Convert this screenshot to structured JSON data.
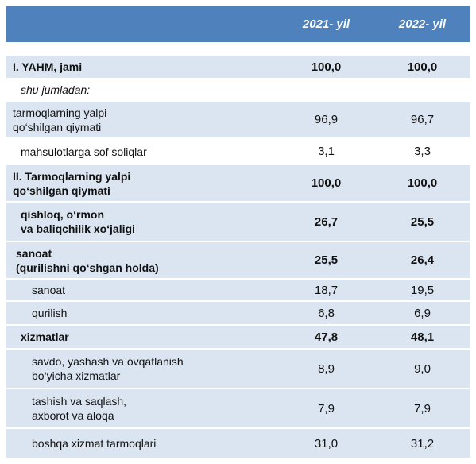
{
  "table": {
    "header": [
      "2021- yil",
      "2022- yil"
    ],
    "rows": [
      {
        "label": [
          "I. YAHM, jami"
        ],
        "values": [
          "100,0",
          "100,0"
        ]
      },
      {
        "label": [
          "shu jumladan:"
        ],
        "values": []
      },
      {
        "label": [
          "tarmoqlarning yalpi",
          "qo‘shilgan qiymati"
        ],
        "values": [
          "96,9",
          "96,7"
        ]
      },
      {
        "label": [
          "mahsulotlarga sof soliqlar"
        ],
        "values": [
          "3,1",
          "3,3"
        ]
      },
      {
        "label": [
          "II.  Tarmoqlarning yalpi",
          "qo‘shilgan qiymati"
        ],
        "values": [
          "100,0",
          "100,0"
        ]
      },
      {
        "label": [
          "qishloq, o‘rmon",
          "va baliqchilik xo‘jaligi"
        ],
        "values": [
          "26,7",
          "25,5"
        ]
      },
      {
        "label": [
          "sanoat",
          "(qurilishni qo‘shgan holda)"
        ],
        "values": [
          "25,5",
          "26,4"
        ]
      },
      {
        "label": [
          "sanoat"
        ],
        "values": [
          "18,7",
          "19,5"
        ]
      },
      {
        "label": [
          "qurilish"
        ],
        "values": [
          "6,8",
          "6,9"
        ]
      },
      {
        "label": [
          "xizmatlar"
        ],
        "values": [
          "47,8",
          "48,1"
        ]
      },
      {
        "label": [
          "savdo, yashash va ovqatlanish",
          "bo‘yicha xizmatlar"
        ],
        "values": [
          "8,9",
          "9,0"
        ]
      },
      {
        "label": [
          "tashish va saqlash,",
          "axborot va aloqa"
        ],
        "values": [
          "7,9",
          "7,9"
        ]
      },
      {
        "label": [
          "boshqa xizmat tarmoqlari"
        ],
        "values": [
          "31,0",
          "31,2"
        ]
      }
    ]
  }
}
